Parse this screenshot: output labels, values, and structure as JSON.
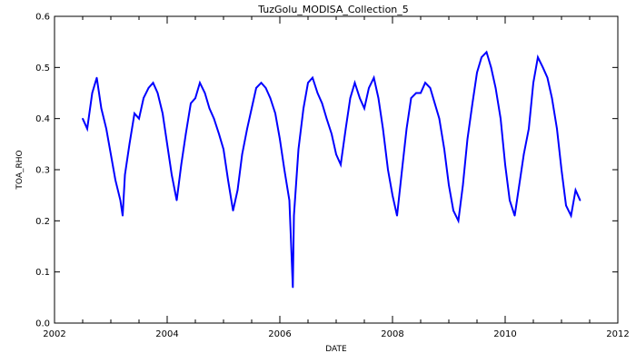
{
  "chart_data": {
    "type": "line",
    "title": "TuzGolu_MODISA_Collection_5",
    "xlabel": "DATE",
    "ylabel": "TOA_RHO",
    "xlim": [
      2002,
      2012
    ],
    "ylim": [
      0.0,
      0.6
    ],
    "x_ticks": [
      "2002",
      "2004",
      "2006",
      "2008",
      "2010",
      "2012"
    ],
    "y_ticks": [
      "0.0",
      "0.1",
      "0.2",
      "0.3",
      "0.4",
      "0.5",
      "0.6"
    ],
    "grid": false,
    "legend": "none",
    "series": [
      {
        "color": "#0000ff",
        "x": [
          2002.5,
          2002.58,
          2002.67,
          2002.75,
          2002.83,
          2002.92,
          2003.0,
          2003.08,
          2003.17,
          2003.21,
          2003.25,
          2003.33,
          2003.42,
          2003.5,
          2003.58,
          2003.67,
          2003.75,
          2003.83,
          2003.92,
          2004.0,
          2004.08,
          2004.17,
          2004.25,
          2004.33,
          2004.42,
          2004.5,
          2004.58,
          2004.67,
          2004.75,
          2004.83,
          2004.92,
          2005.0,
          2005.08,
          2005.17,
          2005.25,
          2005.33,
          2005.42,
          2005.5,
          2005.58,
          2005.67,
          2005.75,
          2005.83,
          2005.92,
          2006.0,
          2006.08,
          2006.17,
          2006.23,
          2006.25,
          2006.33,
          2006.42,
          2006.5,
          2006.58,
          2006.67,
          2006.75,
          2006.83,
          2006.92,
          2007.0,
          2007.08,
          2007.17,
          2007.25,
          2007.33,
          2007.42,
          2007.5,
          2007.58,
          2007.67,
          2007.75,
          2007.83,
          2007.92,
          2008.0,
          2008.08,
          2008.17,
          2008.25,
          2008.33,
          2008.42,
          2008.5,
          2008.58,
          2008.67,
          2008.75,
          2008.83,
          2008.92,
          2009.0,
          2009.08,
          2009.17,
          2009.25,
          2009.33,
          2009.42,
          2009.5,
          2009.58,
          2009.67,
          2009.75,
          2009.83,
          2009.92,
          2010.0,
          2010.08,
          2010.17,
          2010.25,
          2010.33,
          2010.42,
          2010.5,
          2010.58,
          2010.67,
          2010.75,
          2010.83,
          2010.92,
          2011.0,
          2011.08,
          2011.17,
          2011.25,
          2011.33
        ],
        "y": [
          0.4,
          0.38,
          0.45,
          0.48,
          0.42,
          0.38,
          0.33,
          0.28,
          0.24,
          0.21,
          0.29,
          0.35,
          0.41,
          0.4,
          0.44,
          0.46,
          0.47,
          0.45,
          0.41,
          0.35,
          0.29,
          0.24,
          0.31,
          0.37,
          0.43,
          0.44,
          0.47,
          0.45,
          0.42,
          0.4,
          0.37,
          0.34,
          0.28,
          0.22,
          0.26,
          0.33,
          0.38,
          0.42,
          0.46,
          0.47,
          0.46,
          0.44,
          0.41,
          0.36,
          0.3,
          0.24,
          0.07,
          0.21,
          0.34,
          0.42,
          0.47,
          0.48,
          0.45,
          0.43,
          0.4,
          0.37,
          0.33,
          0.31,
          0.38,
          0.44,
          0.47,
          0.44,
          0.42,
          0.46,
          0.48,
          0.44,
          0.38,
          0.3,
          0.25,
          0.21,
          0.3,
          0.38,
          0.44,
          0.45,
          0.45,
          0.47,
          0.46,
          0.43,
          0.4,
          0.34,
          0.27,
          0.22,
          0.2,
          0.27,
          0.36,
          0.43,
          0.49,
          0.52,
          0.53,
          0.5,
          0.46,
          0.4,
          0.31,
          0.24,
          0.21,
          0.27,
          0.33,
          0.38,
          0.47,
          0.52,
          0.5,
          0.48,
          0.44,
          0.38,
          0.3,
          0.23,
          0.21,
          0.26,
          0.24
        ]
      }
    ]
  }
}
